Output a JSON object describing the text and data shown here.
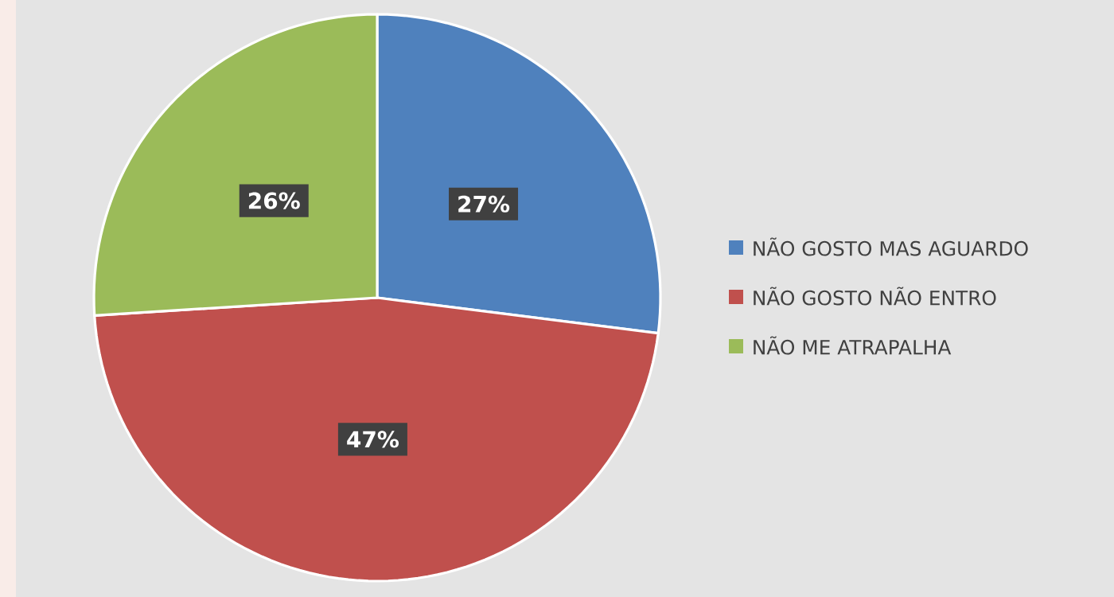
{
  "chart_data": {
    "type": "pie",
    "categories": [
      "NÃO GOSTO MAS AGUARDO",
      "NÃO GOSTO NÃO ENTRO",
      "NÃO ME ATRAPALHA"
    ],
    "values": [
      27,
      47,
      26
    ],
    "value_labels": [
      "27%",
      "47%",
      "26%"
    ],
    "colors": [
      "#4f81bd",
      "#c0504d",
      "#9bbb59"
    ],
    "legend": "right"
  }
}
